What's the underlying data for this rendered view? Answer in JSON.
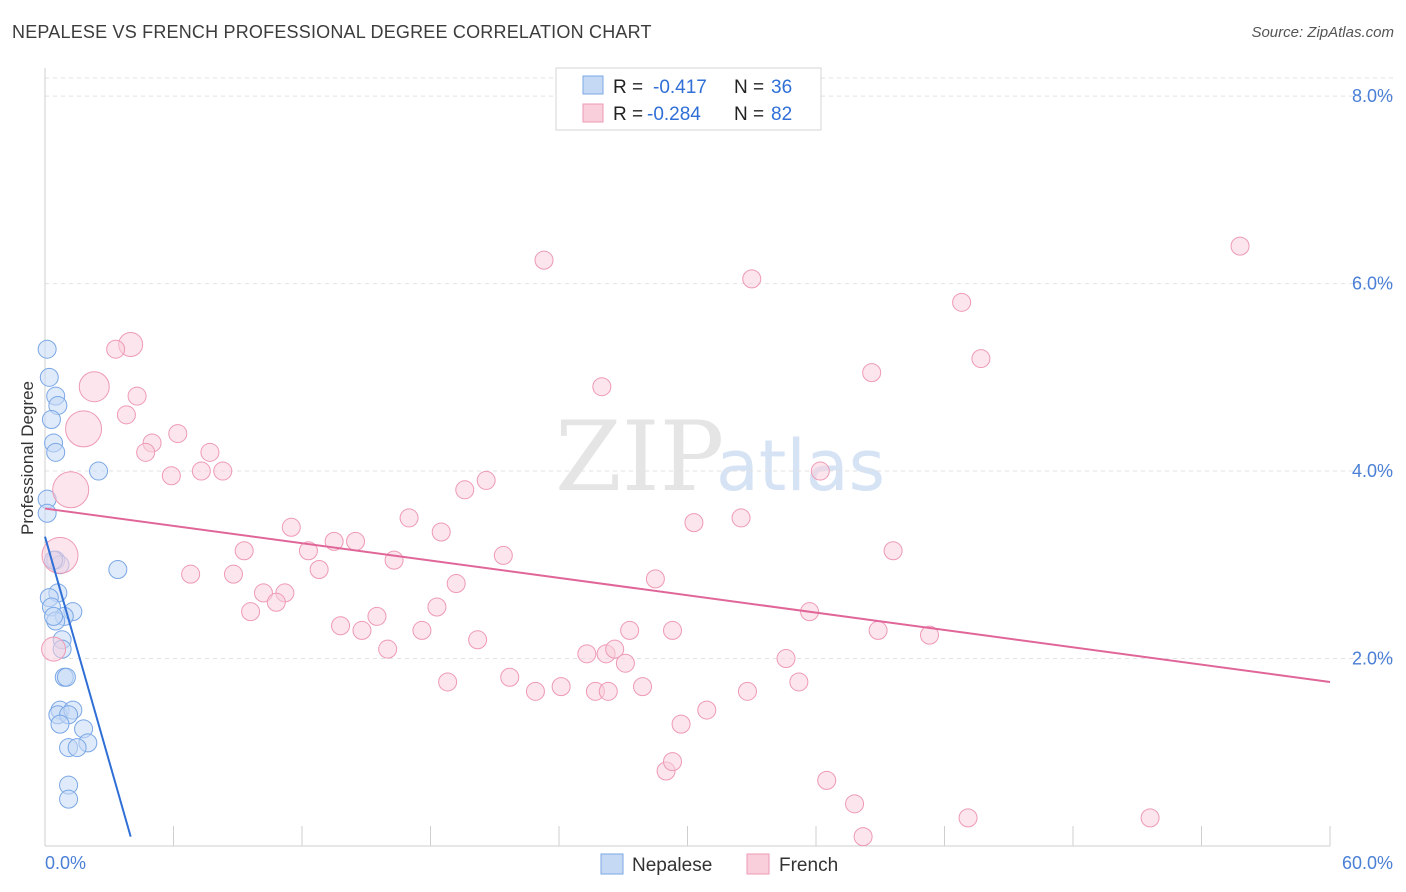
{
  "title": "NEPALESE VS FRENCH PROFESSIONAL DEGREE CORRELATION CHART",
  "source": "Source: ZipAtlas.com",
  "watermark": {
    "zip": "ZIP",
    "atlas": "atlas"
  },
  "legend": {
    "rows": [
      {
        "r_label": "R =",
        "r_value": "-0.417",
        "n_label": "N =",
        "n_value": "36"
      },
      {
        "r_label": "R =",
        "r_value": "-0.284",
        "n_label": "N =",
        "n_value": "82"
      }
    ]
  },
  "chart_data": {
    "type": "scatter",
    "title": "NEPALESE VS FRENCH PROFESSIONAL DEGREE CORRELATION CHART",
    "xlabel": "",
    "ylabel": "Professional Degree",
    "xlim": [
      0,
      60
    ],
    "ylim": [
      0,
      8.3
    ],
    "x_tick_labels": [
      "0.0%",
      "60.0%"
    ],
    "y_ticks": [
      2,
      4,
      6,
      8
    ],
    "y_tick_labels": [
      "2.0%",
      "4.0%",
      "6.0%",
      "8.0%"
    ],
    "grid": true,
    "series": [
      {
        "name": "Nepalese",
        "color": "#7aa7e6",
        "fill": "#c5d9f5",
        "line_color": "#2f6fd6",
        "trend": {
          "x": [
            0,
            4
          ],
          "y": [
            3.3,
            0.1
          ]
        },
        "points": [
          [
            0.1,
            5.3,
            9
          ],
          [
            0.2,
            5.0,
            9
          ],
          [
            0.5,
            4.8,
            9
          ],
          [
            0.6,
            4.7,
            9
          ],
          [
            0.3,
            4.55,
            9
          ],
          [
            0.4,
            4.3,
            9
          ],
          [
            0.5,
            4.2,
            9
          ],
          [
            2.5,
            4.0,
            9
          ],
          [
            0.1,
            3.7,
            9
          ],
          [
            0.1,
            3.55,
            9
          ],
          [
            0.5,
            3.05,
            9
          ],
          [
            0.7,
            3.0,
            9
          ],
          [
            3.4,
            2.95,
            9
          ],
          [
            0.6,
            2.7,
            9
          ],
          [
            0.2,
            2.65,
            9
          ],
          [
            0.3,
            2.55,
            9
          ],
          [
            1.3,
            2.5,
            9
          ],
          [
            0.9,
            2.45,
            9
          ],
          [
            0.5,
            2.4,
            9
          ],
          [
            0.8,
            2.2,
            9
          ],
          [
            0.8,
            2.1,
            9
          ],
          [
            0.9,
            1.8,
            9
          ],
          [
            1.0,
            1.8,
            9
          ],
          [
            0.7,
            1.45,
            9
          ],
          [
            0.6,
            1.4,
            9
          ],
          [
            1.3,
            1.45,
            9
          ],
          [
            1.1,
            1.4,
            9
          ],
          [
            0.7,
            1.3,
            9
          ],
          [
            1.8,
            1.25,
            9
          ],
          [
            2.0,
            1.1,
            9
          ],
          [
            1.1,
            1.05,
            9
          ],
          [
            1.5,
            1.05,
            9
          ],
          [
            1.1,
            0.65,
            9
          ],
          [
            1.1,
            0.5,
            9
          ],
          [
            0.4,
            3.05,
            9
          ],
          [
            0.4,
            2.45,
            9
          ]
        ]
      },
      {
        "name": "French",
        "color": "#ee9ab5",
        "fill": "#f9cfdc",
        "line_color": "#e0669a",
        "trend": {
          "x": [
            0,
            60
          ],
          "y": [
            3.6,
            1.75
          ]
        },
        "points": [
          [
            4.0,
            5.35,
            12
          ],
          [
            3.3,
            5.3,
            9
          ],
          [
            2.3,
            4.9,
            15
          ],
          [
            4.3,
            4.8,
            9
          ],
          [
            3.8,
            4.6,
            9
          ],
          [
            1.8,
            4.45,
            18
          ],
          [
            6.2,
            4.4,
            9
          ],
          [
            5.0,
            4.3,
            9
          ],
          [
            4.7,
            4.2,
            9
          ],
          [
            7.7,
            4.2,
            9
          ],
          [
            5.9,
            3.95,
            9
          ],
          [
            7.3,
            4.0,
            9
          ],
          [
            8.3,
            4.0,
            9
          ],
          [
            1.2,
            3.8,
            18
          ],
          [
            0.7,
            3.1,
            18
          ],
          [
            0.4,
            2.1,
            12
          ],
          [
            11.5,
            3.4,
            9
          ],
          [
            13.5,
            3.25,
            9
          ],
          [
            14.5,
            3.25,
            9
          ],
          [
            12.3,
            3.15,
            9
          ],
          [
            9.3,
            3.15,
            9
          ],
          [
            12.8,
            2.95,
            9
          ],
          [
            6.8,
            2.9,
            9
          ],
          [
            8.8,
            2.9,
            9
          ],
          [
            10.2,
            2.7,
            9
          ],
          [
            11.2,
            2.7,
            9
          ],
          [
            9.6,
            2.5,
            9
          ],
          [
            10.8,
            2.6,
            9
          ],
          [
            16.3,
            3.05,
            9
          ],
          [
            17.0,
            3.5,
            9
          ],
          [
            18.5,
            3.35,
            9
          ],
          [
            19.6,
            3.8,
            9
          ],
          [
            20.6,
            3.9,
            9
          ],
          [
            21.4,
            3.1,
            9
          ],
          [
            23.3,
            6.25,
            9
          ],
          [
            19.2,
            2.8,
            9
          ],
          [
            15.5,
            2.45,
            9
          ],
          [
            17.6,
            2.3,
            9
          ],
          [
            18.3,
            2.55,
            9
          ],
          [
            13.8,
            2.35,
            9
          ],
          [
            14.8,
            2.3,
            9
          ],
          [
            16.0,
            2.1,
            9
          ],
          [
            20.2,
            2.2,
            9
          ],
          [
            18.8,
            1.75,
            9
          ],
          [
            21.7,
            1.8,
            9
          ],
          [
            22.9,
            1.65,
            9
          ],
          [
            24.1,
            1.7,
            9
          ],
          [
            25.3,
            2.05,
            9
          ],
          [
            26.2,
            2.05,
            9
          ],
          [
            25.7,
            1.65,
            9
          ],
          [
            26.3,
            1.65,
            9
          ],
          [
            26.6,
            2.1,
            9
          ],
          [
            27.3,
            2.3,
            9
          ],
          [
            26.0,
            4.9,
            9
          ],
          [
            27.1,
            1.95,
            9
          ],
          [
            27.9,
            1.7,
            9
          ],
          [
            28.5,
            2.85,
            9
          ],
          [
            29.3,
            2.3,
            9
          ],
          [
            29.7,
            1.3,
            9
          ],
          [
            30.3,
            3.45,
            9
          ],
          [
            30.9,
            1.45,
            9
          ],
          [
            32.5,
            3.5,
            9
          ],
          [
            32.8,
            1.65,
            9
          ],
          [
            33.0,
            6.05,
            9
          ],
          [
            34.6,
            2.0,
            9
          ],
          [
            35.2,
            1.75,
            9
          ],
          [
            35.7,
            2.5,
            9
          ],
          [
            36.2,
            4.0,
            9
          ],
          [
            36.5,
            0.7,
            9
          ],
          [
            37.8,
            0.45,
            9
          ],
          [
            38.2,
            0.1,
            9
          ],
          [
            38.6,
            5.05,
            9
          ],
          [
            38.9,
            2.3,
            9
          ],
          [
            39.6,
            3.15,
            9
          ],
          [
            41.3,
            2.25,
            9
          ],
          [
            42.8,
            5.8,
            9
          ],
          [
            43.1,
            0.3,
            9
          ],
          [
            43.7,
            5.2,
            9
          ],
          [
            51.6,
            0.3,
            9
          ],
          [
            55.8,
            6.4,
            9
          ],
          [
            29.0,
            0.8,
            9
          ],
          [
            29.3,
            0.9,
            9
          ]
        ]
      }
    ]
  }
}
